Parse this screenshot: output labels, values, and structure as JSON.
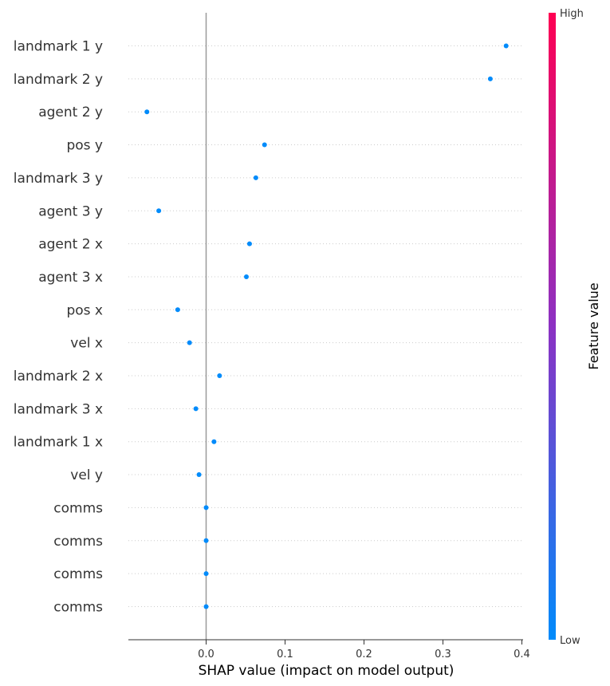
{
  "chart_data": {
    "type": "scatter",
    "title": "",
    "xlabel": "SHAP value (impact on model output)",
    "ylabel": "",
    "xlim": [
      -0.1,
      0.4
    ],
    "xticks": [
      "0.0",
      "0.1",
      "0.2",
      "0.3",
      "0.4"
    ],
    "xtick_values": [
      0.0,
      0.1,
      0.2,
      0.3,
      0.4
    ],
    "features": [
      "landmark 1 y",
      "landmark 2 y",
      "agent 2 y",
      "pos y",
      "landmark 3 y",
      "agent 3 y",
      "agent 2 x",
      "agent 3 x",
      "pos x",
      "vel x",
      "landmark 2 x",
      "landmark 3 x",
      "landmark 1 x",
      "vel y",
      "comms",
      "comms",
      "comms",
      "comms"
    ],
    "shap_values": [
      0.38,
      0.36,
      -0.075,
      0.074,
      0.063,
      -0.06,
      0.055,
      0.051,
      -0.036,
      -0.021,
      0.017,
      -0.013,
      0.01,
      -0.009,
      0.0,
      0.0,
      0.0,
      0.0
    ],
    "colorbar": {
      "title": "Feature value",
      "high_label": "High",
      "low_label": "Low",
      "low_color": "#008bfb",
      "mid_color": "#8c31c3",
      "high_color": "#ff0052"
    },
    "point_color": "#008bfb",
    "grid": false,
    "legend": "colorbar-right"
  }
}
